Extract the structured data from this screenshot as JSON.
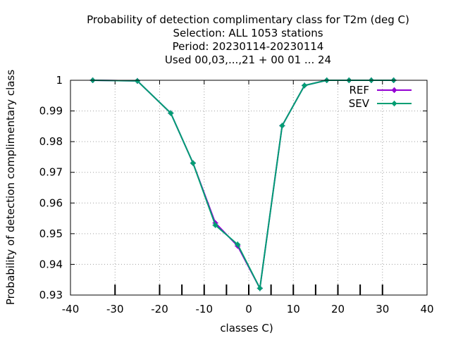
{
  "chart_data": {
    "type": "line",
    "title_lines": [
      "Probability of detection complimentary class  for T2m (deg C)",
      "Selection: ALL   1053 stations",
      "Period: 20230114-20230114",
      "Used  00,03,...,21  + 00 01 ... 24"
    ],
    "xlabel": "classes C)",
    "ylabel": "Probability of detection complimentary class",
    "xlim": [
      -40,
      40
    ],
    "ylim": [
      0.93,
      1.0
    ],
    "xticks": [
      -40,
      -30,
      -20,
      -10,
      0,
      10,
      20,
      30,
      40
    ],
    "xtick_labels": [
      "-40",
      "-30",
      "-20",
      "-10",
      "0",
      "10",
      "20",
      "30",
      "40"
    ],
    "yticks": [
      0.93,
      0.94,
      0.95,
      0.96,
      0.97,
      0.98,
      0.99,
      1.0
    ],
    "ytick_labels": [
      "0.93",
      "0.94",
      "0.95",
      "0.96",
      "0.97",
      "0.98",
      "0.99",
      "1"
    ],
    "class_marks": [
      -30,
      -20,
      -15,
      -10,
      -5,
      0,
      5,
      10,
      15,
      20,
      25,
      30
    ],
    "grid": true,
    "legend_position": "top-right",
    "series": [
      {
        "name": "REF",
        "color": "#9400d3",
        "x": [
          -35,
          -25,
          -17.5,
          -12.5,
          -7.5,
          -2.5,
          2.5,
          7.5,
          12.5,
          17.5,
          22.5,
          27.5,
          32.5
        ],
        "y": [
          1.0,
          0.9998,
          0.9893,
          0.973,
          0.9535,
          0.946,
          0.9322,
          0.9852,
          0.9983,
          1.0,
          1.0,
          1.0,
          1.0
        ]
      },
      {
        "name": "SEV",
        "color": "#009e73",
        "x": [
          -35,
          -25,
          -17.5,
          -12.5,
          -7.5,
          -2.5,
          2.5,
          7.5,
          12.5,
          17.5,
          22.5,
          27.5,
          32.5
        ],
        "y": [
          1.0,
          0.9998,
          0.9893,
          0.973,
          0.9528,
          0.9465,
          0.9322,
          0.9852,
          0.9983,
          1.0,
          1.0,
          1.0,
          1.0
        ]
      }
    ]
  }
}
